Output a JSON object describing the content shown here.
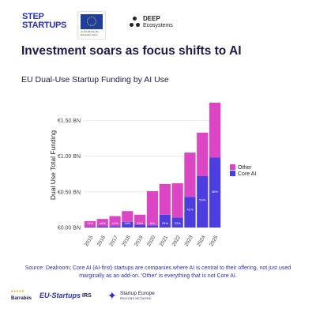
{
  "logos": {
    "step_line1": "STEP",
    "step_line2": "STARTUPS",
    "eu_caption": "Co-funded by the European Union",
    "deep_line1": "DEEP",
    "deep_line2": "Ecosystems"
  },
  "headline": "Investment soars as focus shifts to AI",
  "source": "Source: Dealroom; Core AI (AI-first) startups are companies where AI is central to their offering, not just used marginally as an add-on. 'Other' is everything that is not Core AI.",
  "partners": {
    "barrabes_dots": "•••••",
    "barrabes": "Barrabés",
    "eu_startups": "EU-Startups",
    "irs": "IRS",
    "startup_europe": "Startup Europe",
    "startup_europe_sub": "REGIONS NETWORK"
  },
  "colors": {
    "core_ai": "#4b3de0",
    "other": "#dc45c4",
    "axis_text": "#444444",
    "grid": "#ebebeb"
  },
  "chart_data": {
    "type": "bar",
    "stacked": true,
    "title": "EU Dual-Use Startup Funding by AI Use",
    "ylabel": "Dual Use Total Funding",
    "xlabel": "",
    "categories": [
      "2015",
      "2016",
      "2017",
      "2018",
      "2019",
      "2020",
      "2021",
      "2022",
      "2023",
      "2024",
      "2025"
    ],
    "series": [
      {
        "name": "Core AI",
        "values": [
          0.01,
          0.02,
          0.02,
          0.08,
          0.04,
          0.03,
          0.18,
          0.14,
          0.43,
          0.72,
          0.98
        ],
        "labels": [
          "11%",
          "16%",
          "13%",
          "34%",
          "22%",
          "6%",
          "29%",
          "23%",
          "41%",
          "54%",
          "56%"
        ]
      },
      {
        "name": "Other",
        "values": [
          0.08,
          0.1,
          0.14,
          0.15,
          0.14,
          0.48,
          0.43,
          0.48,
          0.62,
          0.61,
          0.77
        ]
      }
    ],
    "yticks": [
      0,
      0.5,
      1.0,
      1.5
    ],
    "ytick_labels": [
      "€0.00 BN",
      "€0.50 BN",
      "€1.00 BN",
      "€1.50 BN"
    ],
    "ylim": [
      0,
      1.75
    ],
    "grid": true,
    "legend": "right"
  }
}
